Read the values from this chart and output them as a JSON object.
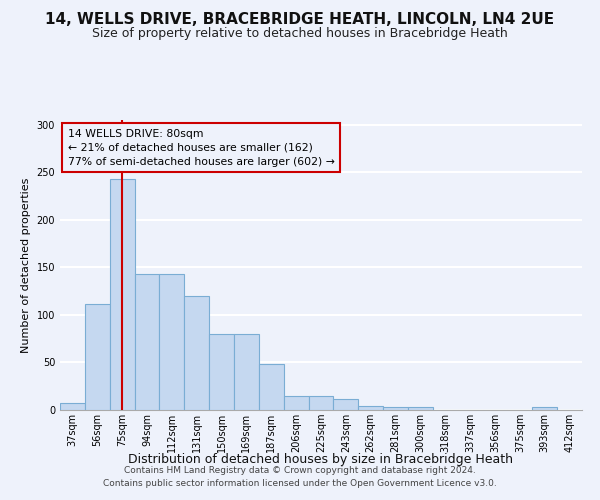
{
  "title1": "14, WELLS DRIVE, BRACEBRIDGE HEATH, LINCOLN, LN4 2UE",
  "title2": "Size of property relative to detached houses in Bracebridge Heath",
  "xlabel": "Distribution of detached houses by size in Bracebridge Heath",
  "ylabel": "Number of detached properties",
  "footer1": "Contains HM Land Registry data © Crown copyright and database right 2024.",
  "footer2": "Contains public sector information licensed under the Open Government Licence v3.0.",
  "annotation_line1": "14 WELLS DRIVE: 80sqm",
  "annotation_line2": "← 21% of detached houses are smaller (162)",
  "annotation_line3": "77% of semi-detached houses are larger (602) →",
  "bar_color": "#c5d8f0",
  "bar_edge_color": "#7aadd4",
  "vline_color": "#cc0000",
  "vline_x": 2.0,
  "categories": [
    "37sqm",
    "56sqm",
    "75sqm",
    "94sqm",
    "112sqm",
    "131sqm",
    "150sqm",
    "169sqm",
    "187sqm",
    "206sqm",
    "225sqm",
    "243sqm",
    "262sqm",
    "281sqm",
    "300sqm",
    "318sqm",
    "337sqm",
    "356sqm",
    "375sqm",
    "393sqm",
    "412sqm"
  ],
  "values": [
    7,
    111,
    243,
    143,
    143,
    120,
    80,
    80,
    48,
    15,
    15,
    12,
    4,
    3,
    3,
    0,
    0,
    0,
    0,
    3,
    0
  ],
  "ylim": [
    0,
    305
  ],
  "yticks": [
    0,
    50,
    100,
    150,
    200,
    250,
    300
  ],
  "background_color": "#eef2fb",
  "grid_color": "#ffffff",
  "title1_fontsize": 11,
  "title2_fontsize": 9,
  "xlabel_fontsize": 9,
  "ylabel_fontsize": 8,
  "footer_fontsize": 6.5,
  "tick_fontsize": 7
}
